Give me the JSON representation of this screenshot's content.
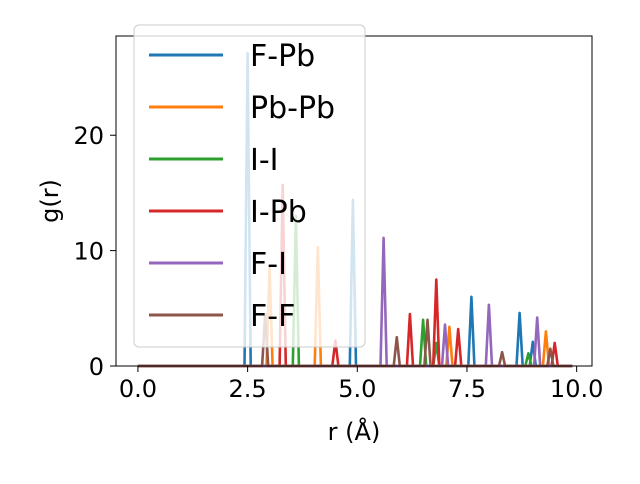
{
  "chart_data": {
    "type": "line",
    "title": "",
    "xlabel": "r (Å)",
    "ylabel": "g(r)",
    "xlim": [
      -0.5,
      10.35
    ],
    "ylim": [
      0,
      28.6
    ],
    "xticks": [
      0.0,
      2.5,
      5.0,
      7.5,
      10.0
    ],
    "xtick_labels": [
      "0.0",
      "2.5",
      "5.0",
      "7.5",
      "10.0"
    ],
    "yticks": [
      0,
      10,
      20
    ],
    "ytick_labels": [
      "0",
      "10",
      "20"
    ],
    "grid": false,
    "legend_position": "upper-left",
    "series": [
      {
        "name": "F-Pb",
        "color": "#1f77b4",
        "peaks": [
          [
            2.5,
            27.1
          ],
          [
            4.9,
            14.4
          ],
          [
            7.6,
            6.0
          ],
          [
            8.7,
            4.6
          ],
          [
            9.0,
            2.1
          ]
        ]
      },
      {
        "name": "Pb-Pb",
        "color": "#ff7f0e",
        "peaks": [
          [
            4.1,
            10.3
          ],
          [
            7.1,
            3.4
          ],
          [
            9.3,
            3.0
          ],
          [
            3.0,
            8.5
          ]
        ]
      },
      {
        "name": "I-I",
        "color": "#2ca02c",
        "peaks": [
          [
            3.6,
            13.0
          ],
          [
            6.5,
            4.0
          ],
          [
            6.8,
            2.0
          ],
          [
            8.9,
            1.1
          ]
        ]
      },
      {
        "name": "I-Pb",
        "color": "#d62728",
        "peaks": [
          [
            3.3,
            15.7
          ],
          [
            4.5,
            2.2
          ],
          [
            6.2,
            4.5
          ],
          [
            6.8,
            7.5
          ],
          [
            7.3,
            3.2
          ],
          [
            9.5,
            2.0
          ]
        ]
      },
      {
        "name": "F-I",
        "color": "#9467bd",
        "peaks": [
          [
            5.6,
            11.1
          ],
          [
            7.0,
            3.6
          ],
          [
            8.0,
            5.3
          ],
          [
            9.1,
            4.2
          ]
        ]
      },
      {
        "name": "F-F",
        "color": "#8c564b",
        "peaks": [
          [
            2.9,
            4.5
          ],
          [
            5.9,
            2.5
          ],
          [
            6.6,
            4.0
          ],
          [
            8.3,
            1.2
          ],
          [
            9.4,
            1.5
          ]
        ]
      }
    ]
  }
}
